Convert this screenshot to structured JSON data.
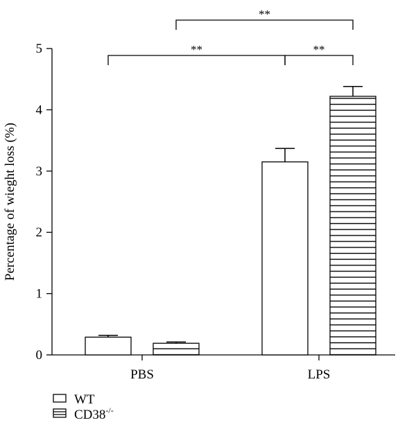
{
  "chart_data": {
    "type": "bar",
    "categories": [
      "PBS",
      "LPS"
    ],
    "series": [
      {
        "name": "WT",
        "values": [
          0.29,
          3.15
        ],
        "errors": [
          0.03,
          0.22
        ],
        "pattern": "open"
      },
      {
        "name": "CD38",
        "name_sup": "-/-",
        "values": [
          0.19,
          4.22
        ],
        "errors": [
          0.02,
          0.16
        ],
        "pattern": "horizontal-stripes"
      }
    ],
    "title": "",
    "xlabel": "",
    "ylabel": "Percentage of wieght loss (%)",
    "ylim": [
      0,
      5
    ],
    "yticks": [
      "0",
      "1",
      "2",
      "3",
      "4",
      "5"
    ],
    "grid": false,
    "legend_position": "bottom-left",
    "significance": [
      {
        "label": "**",
        "from": "PBS-CD38",
        "to": "LPS-CD38"
      },
      {
        "label": "**",
        "from": "PBS-WT",
        "to": "LPS-WT"
      },
      {
        "label": "**",
        "from": "LPS-WT",
        "to": "LPS-CD38"
      }
    ],
    "colors": {
      "bar_fill": "#ffffff",
      "stroke": "#000000"
    }
  }
}
